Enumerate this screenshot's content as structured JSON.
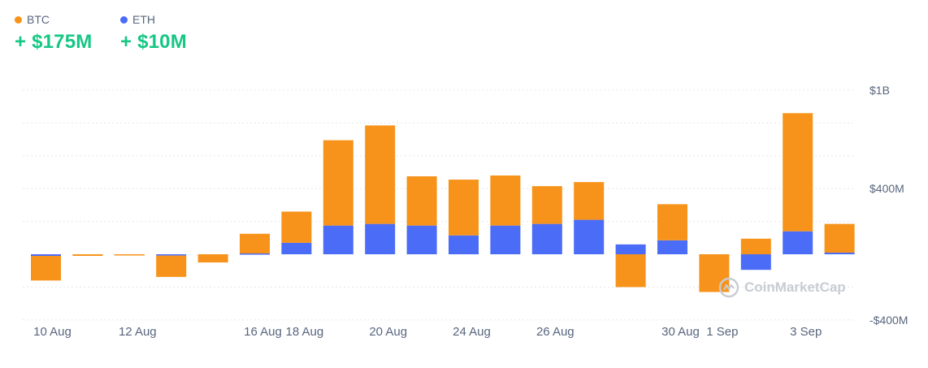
{
  "legend": {
    "btc": {
      "label": "BTC",
      "value": "+ $175M",
      "color": "#f7931a"
    },
    "eth": {
      "label": "ETH",
      "value": "+ $10M",
      "color": "#4a6cf7"
    }
  },
  "watermark": "CoinMarketCap",
  "chart_data": {
    "type": "bar",
    "stacked": true,
    "x_labels": [
      "10 Aug",
      "12 Aug",
      "16 Aug",
      "18 Aug",
      "20 Aug",
      "24 Aug",
      "26 Aug",
      "30 Aug",
      "1 Sep",
      "3 Sep"
    ],
    "y_ticks": [
      {
        "value": 1000,
        "label": "$1B"
      },
      {
        "value": 400,
        "label": "$400M"
      },
      {
        "value": -400,
        "label": "-$400M"
      }
    ],
    "y_unit": "$M",
    "ylim": [
      -400,
      1000
    ],
    "grid": true,
    "legend_position": "top-left",
    "bars": [
      {
        "btc": -150,
        "eth": -10
      },
      {
        "btc": -10,
        "eth": 0
      },
      {
        "btc": -5,
        "eth": 0
      },
      {
        "btc": -130,
        "eth": -8
      },
      {
        "btc": -50,
        "eth": 0
      },
      {
        "btc": 120,
        "eth": 5
      },
      {
        "btc": 190,
        "eth": 70
      },
      {
        "btc": 520,
        "eth": 175
      },
      {
        "btc": 600,
        "eth": 185
      },
      {
        "btc": 300,
        "eth": 175
      },
      {
        "btc": 340,
        "eth": 115
      },
      {
        "btc": 305,
        "eth": 175
      },
      {
        "btc": 230,
        "eth": 185
      },
      {
        "btc": 230,
        "eth": 210
      },
      {
        "btc": -200,
        "eth": 60
      },
      {
        "btc": 220,
        "eth": 85
      },
      {
        "btc": -230,
        "eth": 0
      },
      {
        "btc": 95,
        "eth": -95
      },
      {
        "btc": 720,
        "eth": 140
      },
      {
        "btc": 175,
        "eth": 10
      }
    ],
    "series": [
      {
        "name": "BTC",
        "key": "btc",
        "color": "#f7931a"
      },
      {
        "name": "ETH",
        "key": "eth",
        "color": "#4a6cf7"
      }
    ]
  }
}
